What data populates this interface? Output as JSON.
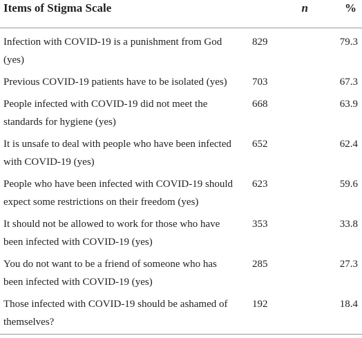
{
  "table": {
    "header": [
      "Items of Stigma Scale",
      "n",
      "%"
    ],
    "rows": [
      [
        [
          "Infection with COVID-19 is a punishment from God",
          "(yes)"
        ],
        829,
        79.3
      ],
      [
        [
          "Previous COVID-19 patients have to be isolated (yes)"
        ],
        703,
        67.3
      ],
      [
        [
          "People infected with COVID-19 did not meet the",
          "standards for hygiene (yes)"
        ],
        668,
        63.9
      ],
      [
        [
          "It is unsafe to deal with people who have been infected",
          "with COVID-19 (yes)"
        ],
        652,
        62.4
      ],
      [
        [
          "People who have been infected with COVID-19 should",
          "expect some restrictions on their freedom (yes)"
        ],
        623,
        59.6
      ],
      [
        [
          "It should not be allowed to work for those who have",
          "been infected with COVID-19 (yes)"
        ],
        353,
        33.8
      ],
      [
        [
          "You do not want to be a friend of someone who has",
          "been infected with COVID-19 (yes)"
        ],
        285,
        27.3
      ],
      [
        [
          "Those infected with COVID-19 should be ashamed of",
          "themselves?"
        ],
        192,
        18.4
      ]
    ]
  }
}
